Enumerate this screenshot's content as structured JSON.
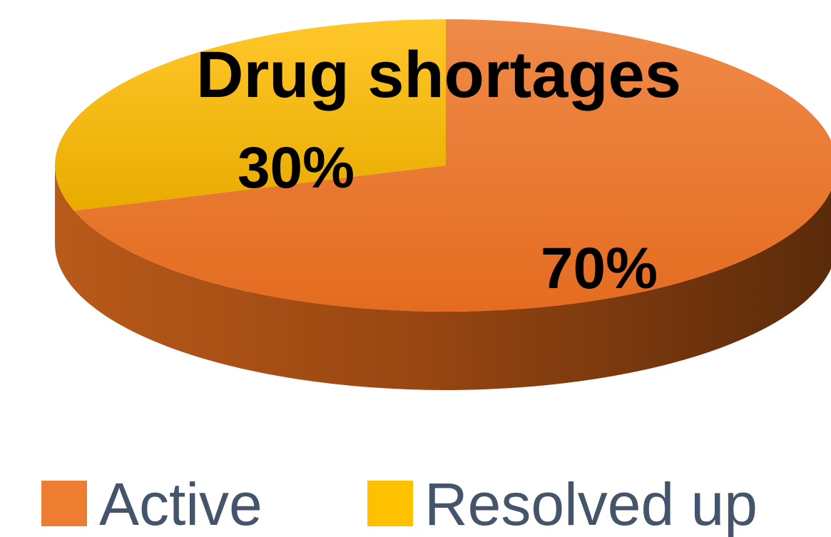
{
  "chart_data": {
    "type": "pie",
    "title": "Drug shortages",
    "categories": [
      "Active",
      "Resolved up"
    ],
    "values": [
      70,
      30
    ],
    "data_labels": [
      "70%",
      "30%"
    ],
    "colors": [
      "#ED7D31",
      "#FFC000"
    ],
    "style": "3d",
    "legend": {
      "position": "bottom"
    }
  }
}
